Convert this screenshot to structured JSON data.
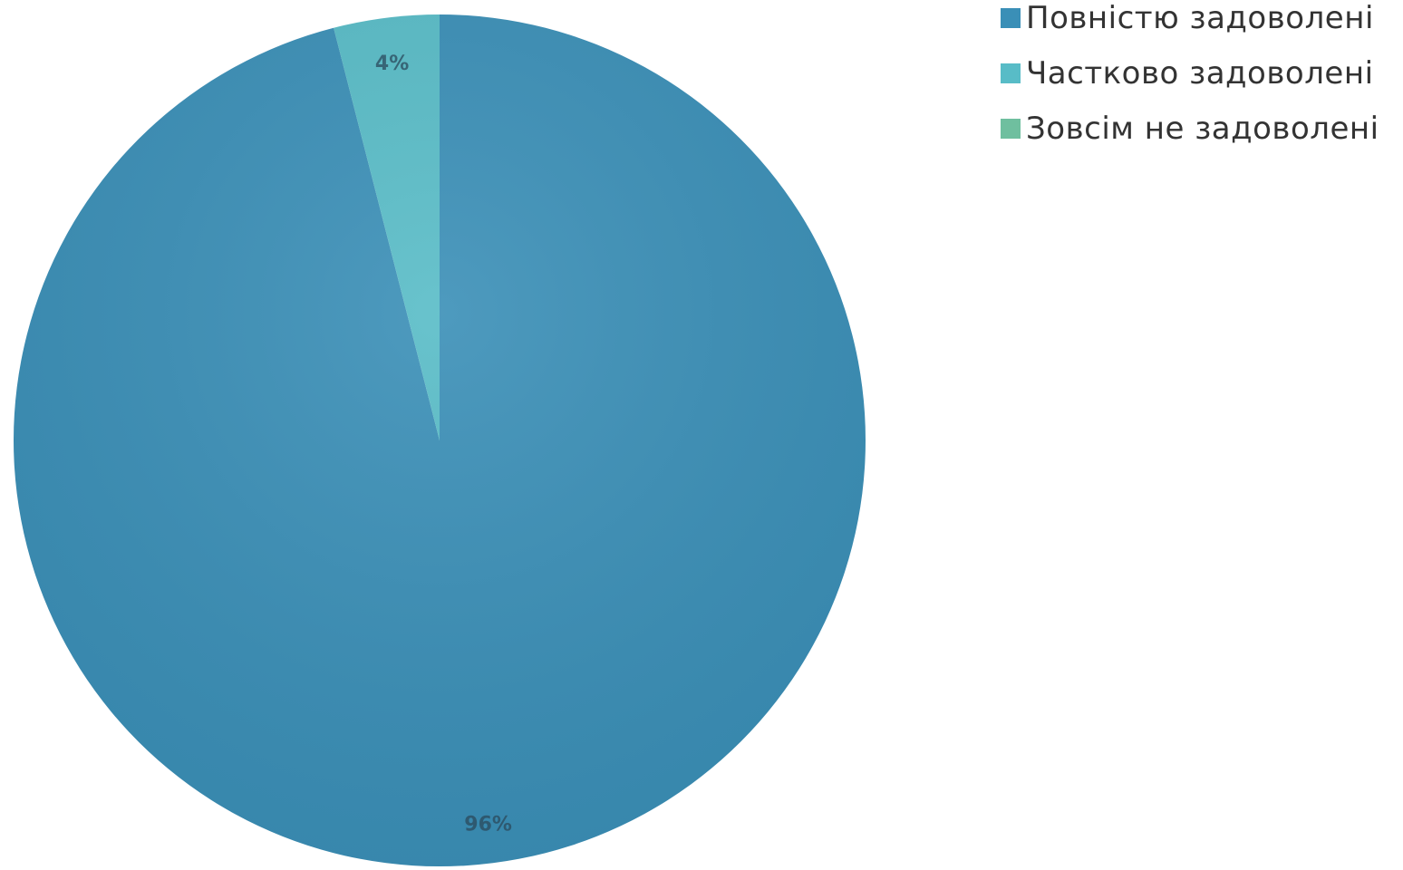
{
  "chart_data": {
    "type": "pie",
    "title": "",
    "categories": [
      "Повністю задоволені",
      "Частково задоволені",
      "Зовсім не задоволені"
    ],
    "values": [
      96,
      4,
      0
    ],
    "value_labels": [
      "96%",
      "4%",
      ""
    ],
    "colors": [
      "#3a8fb7",
      "#58bcc7",
      "#6fbf9f"
    ],
    "legend_position": "top-right",
    "start_angle_deg": 0,
    "direction": "clockwise"
  }
}
